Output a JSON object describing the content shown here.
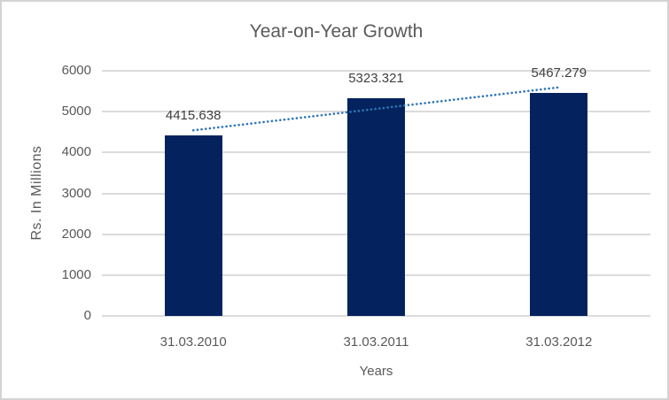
{
  "chart_data": {
    "type": "bar",
    "title": "Year-on-Year Growth",
    "xlabel": "Years",
    "ylabel": "Rs. In Millions",
    "categories": [
      "31.03.2010",
      "31.03.2011",
      "31.03.2012"
    ],
    "values": [
      4415.638,
      5323.321,
      5467.279
    ],
    "data_labels": [
      "4415.638",
      "5323.321",
      "5467.279"
    ],
    "ylim": [
      0,
      6000
    ],
    "yticks": [
      0,
      1000,
      2000,
      3000,
      4000,
      5000,
      6000
    ],
    "ytick_labels": [
      "0",
      "1000",
      "2000",
      "3000",
      "4000",
      "5000",
      "6000"
    ],
    "grid": "horizontal",
    "legend": "none",
    "trendline": {
      "kind": "linear",
      "style": "dotted",
      "color": "#2E75B6"
    },
    "colors": {
      "bar": "#04235E",
      "gridline": "#DBDBDB",
      "title_text": "#595959",
      "axis_text": "#595959",
      "data_label_text": "#3F3F3F",
      "trendline": "#2E75B6",
      "frame_border": "#D3D3D3",
      "background": "#FFFFFF"
    }
  }
}
